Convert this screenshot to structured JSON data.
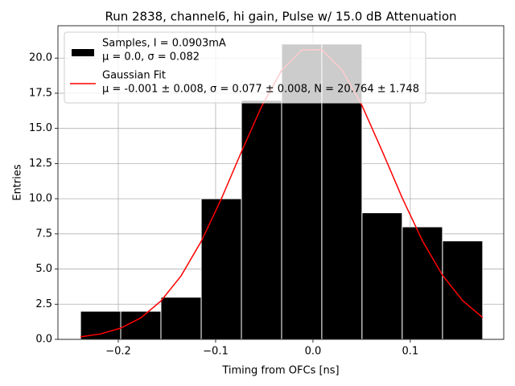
{
  "chart_data": {
    "type": "histogram",
    "title": "Run 2838, channel6, hi gain, Pulse w/ 15.0 dB Attenuation",
    "xlabel": "Timing from OFCs [ns]",
    "ylabel": "Entries",
    "xlim": [
      -0.262,
      0.196
    ],
    "ylim": [
      0,
      22.3
    ],
    "xticks": [
      {
        "value": -0.2,
        "label": "−0.2"
      },
      {
        "value": -0.1,
        "label": "−0.1"
      },
      {
        "value": 0,
        "label": "0.0"
      },
      0.1
    ],
    "yticks": [
      {
        "value": 0,
        "label": "0.0"
      },
      2.5,
      {
        "value": 5,
        "label": "5.0"
      },
      7.5,
      {
        "value": 10,
        "label": "10.0"
      },
      12.5,
      {
        "value": 15,
        "label": "15.0"
      },
      17.5,
      {
        "value": 20,
        "label": "20.0"
      }
    ],
    "grid": true,
    "legend": "upper left",
    "series": [
      {
        "type": "histogram",
        "name": [
          "Samples, I = 0.0903mA",
          "μ = 0.0, σ = 0.082"
        ],
        "color": "#000000",
        "edgecolor": "#ffffff",
        "bins": [
          -0.2388,
          -0.1975,
          -0.1562,
          -0.1148,
          -0.0735,
          -0.0322,
          0.0091,
          0.0504,
          0.0917,
          0.1331,
          0.1744
        ],
        "values": [
          2,
          2,
          3,
          10,
          17,
          21,
          21,
          9,
          8,
          7
        ]
      },
      {
        "type": "line",
        "name": [
          "Gaussian Fit",
          "μ = -0.001 ± 0.008, σ = 0.077 ± 0.008, N = 20.764 ± 1.748"
        ],
        "color": "#ff0000",
        "x": [
          -0.2388,
          -0.2181,
          -0.1975,
          -0.1768,
          -0.1562,
          -0.1355,
          -0.1148,
          -0.0942,
          -0.0735,
          -0.0529,
          -0.0322,
          -0.0115,
          0.0091,
          0.0298,
          0.0504,
          0.0711,
          0.0917,
          0.1124,
          0.1331,
          0.1537,
          0.1744
        ],
        "values": [
          0.176,
          0.39,
          0.8,
          1.532,
          2.724,
          4.514,
          6.966,
          9.981,
          13.33,
          16.54,
          19.13,
          20.57,
          20.59,
          19.17,
          16.62,
          13.39,
          10.06,
          7.02,
          4.556,
          2.759,
          1.549
        ]
      }
    ]
  }
}
